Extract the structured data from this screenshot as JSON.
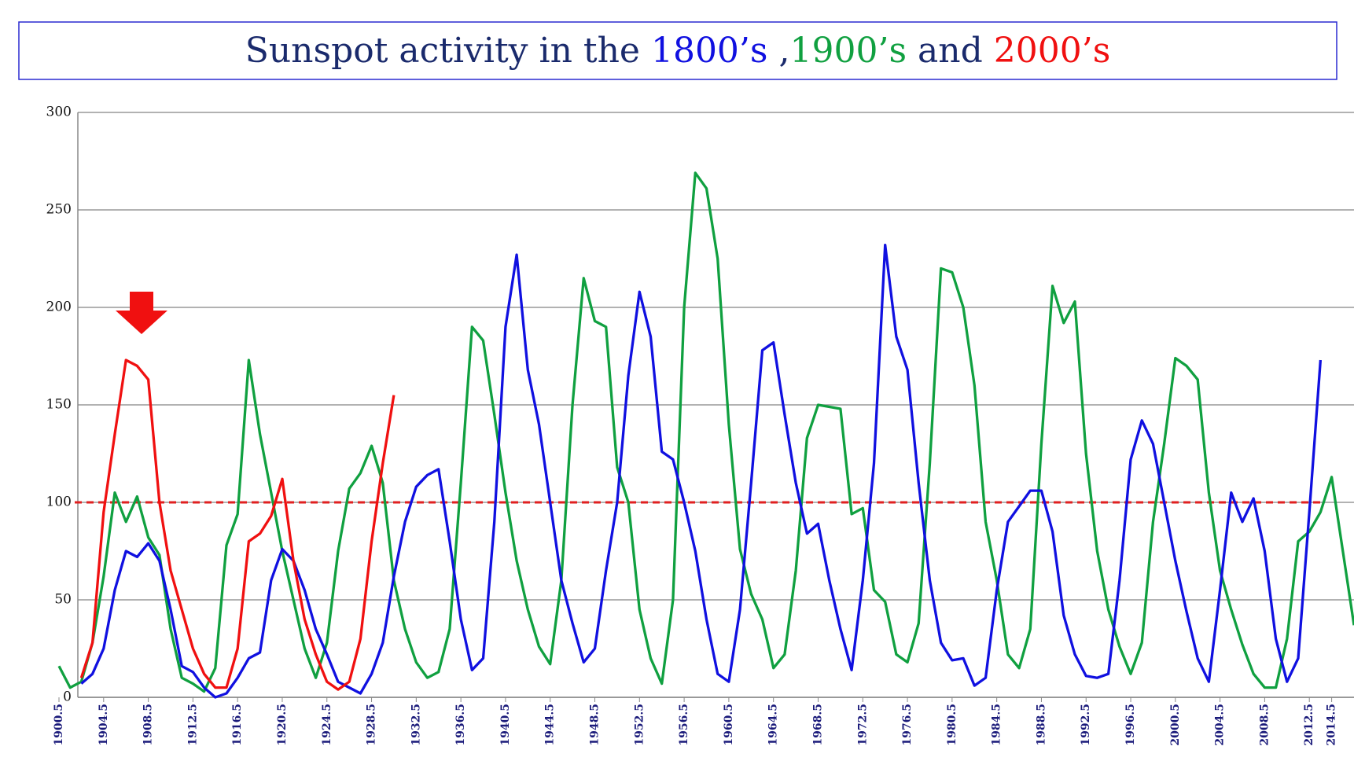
{
  "chart_data": {
    "type": "line",
    "title_text": [
      "Sunspot activity in the ",
      " ,",
      " and "
    ],
    "title_color": "#1a2a6c",
    "x": [
      1900.5,
      1901.5,
      1902.5,
      1903.5,
      1904.5,
      1905.5,
      1906.5,
      1907.5,
      1908.5,
      1909.5,
      1910.5,
      1911.5,
      1912.5,
      1913.5,
      1914.5,
      1915.5,
      1916.5,
      1917.5,
      1918.5,
      1919.5,
      1920.5,
      1921.5,
      1922.5,
      1923.5,
      1924.5,
      1925.5,
      1926.5,
      1927.5,
      1928.5,
      1929.5,
      1930.5,
      1931.5,
      1932.5,
      1933.5,
      1934.5,
      1935.5,
      1936.5,
      1937.5,
      1938.5,
      1939.5,
      1940.5,
      1941.5,
      1942.5,
      1943.5,
      1944.5,
      1945.5,
      1946.5,
      1947.5,
      1948.5,
      1949.5,
      1950.5,
      1951.5,
      1952.5,
      1953.5,
      1954.5,
      1955.5,
      1956.5,
      1957.5,
      1958.5,
      1959.5,
      1960.5,
      1961.5,
      1962.5,
      1963.5,
      1964.5,
      1965.5,
      1966.5,
      1967.5,
      1968.5,
      1969.5,
      1970.5,
      1971.5,
      1972.5,
      1973.5,
      1974.5,
      1975.5,
      1976.5,
      1977.5,
      1978.5,
      1979.5,
      1980.5,
      1981.5,
      1982.5,
      1983.5,
      1984.5,
      1985.5,
      1986.5,
      1987.5,
      1988.5,
      1989.5,
      1990.5,
      1991.5,
      1992.5,
      1993.5,
      1994.5,
      1995.5,
      1996.5,
      1997.5,
      1998.5,
      1999.5,
      2000.5,
      2001.5,
      2002.5,
      2003.5,
      2004.5,
      2005.5,
      2006.5,
      2007.5,
      2008.5,
      2009.5,
      2010.5,
      2011.5,
      2012.5,
      2013.5,
      2014.5,
      2015.5,
      2016.5
    ],
    "xlim": [
      1900.5,
      2016.5
    ],
    "xticks": [
      1900.5,
      1904.5,
      1908.5,
      1912.5,
      1916.5,
      1920.5,
      1924.5,
      1928.5,
      1932.5,
      1936.5,
      1940.5,
      1944.5,
      1948.5,
      1952.5,
      1956.5,
      1960.5,
      1964.5,
      1968.5,
      1972.5,
      1976.5,
      1980.5,
      1984.5,
      1988.5,
      1992.5,
      1996.5,
      2000.5,
      2004.5,
      2008.5,
      2012.5,
      2014.5
    ],
    "ylim": [
      0,
      300
    ],
    "yticks": [
      0,
      50,
      100,
      150,
      200,
      250,
      300
    ],
    "grid": true,
    "reference_line": {
      "value": 100,
      "color": "#e02020"
    },
    "series": [
      {
        "name": "1800’s",
        "color": "#1010e0",
        "values": [
          null,
          null,
          7,
          12,
          25,
          55,
          75,
          72,
          79,
          70,
          45,
          16,
          13,
          5,
          0,
          2,
          10,
          20,
          23,
          60,
          76,
          70,
          55,
          35,
          22,
          8,
          5,
          2,
          12,
          28,
          62,
          90,
          108,
          114,
          117,
          80,
          40,
          14,
          20,
          90,
          190,
          227,
          168,
          140,
          100,
          60,
          38,
          18,
          25,
          65,
          100,
          165,
          208,
          185,
          126,
          122,
          100,
          75,
          40,
          12,
          8,
          45,
          110,
          178,
          182,
          145,
          110,
          84,
          89,
          60,
          35,
          14,
          60,
          120,
          232,
          185,
          168,
          110,
          60,
          28,
          19,
          20,
          6,
          10,
          55,
          90,
          98,
          106,
          106,
          85,
          42,
          22,
          11,
          10,
          12,
          60,
          122,
          142,
          130,
          100,
          70,
          44,
          20,
          8,
          55,
          105,
          90,
          102,
          75,
          30,
          8,
          20,
          95,
          173,
          null,
          null,
          null
        ]
      },
      {
        "name": "1900’s",
        "color": "#10a040",
        "values": [
          16,
          5,
          8,
          28,
          62,
          105,
          90,
          103,
          82,
          73,
          35,
          10,
          7,
          3,
          15,
          78,
          94,
          173,
          135,
          105,
          75,
          50,
          25,
          10,
          28,
          75,
          107,
          115,
          129,
          110,
          60,
          35,
          18,
          10,
          13,
          35,
          110,
          190,
          183,
          145,
          105,
          70,
          45,
          26,
          17,
          60,
          150,
          215,
          193,
          190,
          118,
          100,
          45,
          20,
          7,
          50,
          200,
          269,
          261,
          225,
          140,
          76,
          53,
          40,
          15,
          22,
          65,
          133,
          150,
          149,
          148,
          94,
          97,
          55,
          49,
          22,
          18,
          38,
          120,
          220,
          218,
          200,
          160,
          90,
          60,
          22,
          15,
          35,
          130,
          211,
          192,
          203,
          125,
          75,
          45,
          26,
          12,
          28,
          90,
          130,
          174,
          170,
          163,
          105,
          65,
          45,
          27,
          12,
          5,
          5,
          30,
          80,
          85,
          95,
          113,
          75,
          37
        ]
      },
      {
        "name": "2000’s",
        "color": "#f01010",
        "values": [
          null,
          null,
          10,
          28,
          95,
          135,
          173,
          170,
          163,
          100,
          65,
          45,
          25,
          12,
          5,
          5,
          25,
          80,
          84,
          93,
          112,
          70,
          40,
          22,
          8,
          4,
          8,
          30,
          80,
          120,
          155,
          null,
          null,
          null,
          null,
          null,
          null,
          null,
          null,
          null,
          null,
          null,
          null,
          null,
          null,
          null,
          null,
          null,
          null,
          null,
          null,
          null,
          null,
          null,
          null,
          null,
          null,
          null,
          null,
          null,
          null,
          null,
          null,
          null,
          null,
          null,
          null,
          null,
          null,
          null,
          null,
          null,
          null,
          null,
          null,
          null,
          null,
          null,
          null,
          null,
          null,
          null,
          null,
          null,
          null,
          null,
          null,
          null,
          null,
          null,
          null,
          null,
          null,
          null,
          null,
          null,
          null,
          null,
          null,
          null,
          null,
          null,
          null,
          null,
          null,
          null,
          null,
          null,
          null,
          null,
          null,
          null,
          null,
          null,
          null,
          null,
          null
        ]
      }
    ]
  }
}
